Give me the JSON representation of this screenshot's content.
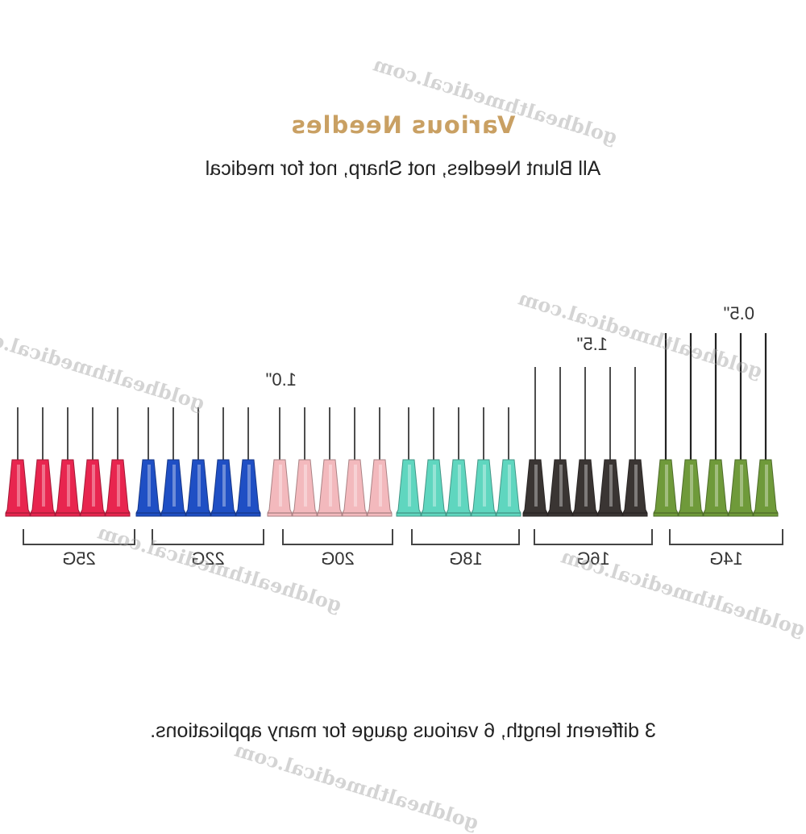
{
  "title": "Various Needles",
  "subtitle": "All Blunt Needles, not Sharp, not for medical",
  "footer": "3 different length, 6 various gauge for many applications.",
  "lengths": [
    "0.5\"",
    "1.0\"",
    "1.5\""
  ],
  "gauges": [
    {
      "label": "25G",
      "color": "#e8254f",
      "length": "0.5\""
    },
    {
      "label": "22G",
      "color": "#1f4fc4",
      "length": "0.5\""
    },
    {
      "label": "20G",
      "color": "#f3b9bd",
      "length": "0.5\""
    },
    {
      "label": "18G",
      "color": "#5fd6bf",
      "length": "0.5\""
    },
    {
      "label": "16G",
      "color": "#3a3533",
      "length": "1.0\""
    },
    {
      "label": "14G",
      "color": "#6f9a3a",
      "length": "1.5\""
    }
  ],
  "needles_per_gauge": 5,
  "watermark": "goldhealthmedical.com"
}
